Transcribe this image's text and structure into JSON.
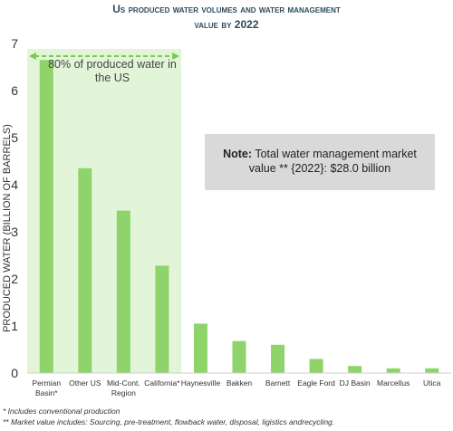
{
  "title_line1": "Us produced water volumes and water management",
  "title_line2": "value by 2022",
  "note_label": "Note:",
  "note_text": "Total water management market value ** {2022}: $28.0 billion",
  "region_annotation": "80% of produced water in the US",
  "footnote1": "* Includes conventional production",
  "footnote2": "** Market value includes: Sourcing, pre-treatment, flowback water, disposal, ligistics andrecycling.",
  "colors": {
    "bar": "#8fd46a",
    "highlight": "#e3f5d9",
    "arrow": "#7cc94f",
    "title": "#2d4b5e",
    "note_bg": "#d9d9d9"
  },
  "chart_data": {
    "type": "bar",
    "title": "Us produced water volumes and water management value by 2022",
    "ylabel": "PRODUCED WATER (BILLION OF BARRELS)",
    "xlabel": "",
    "ylim": [
      0,
      7
    ],
    "yticks": [
      0,
      1,
      2,
      3,
      4,
      5,
      6,
      7
    ],
    "grid": false,
    "categories": [
      [
        "Permian",
        "Basin*"
      ],
      [
        "Other US"
      ],
      [
        "Mid-Cont.",
        "Region"
      ],
      [
        "California*"
      ],
      [
        "Haynesville"
      ],
      [
        "Bakken"
      ],
      [
        "Barnett"
      ],
      [
        "Eagle Ford"
      ],
      [
        "DJ Basin"
      ],
      [
        "Marcellus"
      ],
      [
        "Utica"
      ]
    ],
    "values": [
      6.65,
      4.35,
      3.45,
      2.28,
      1.05,
      0.68,
      0.6,
      0.3,
      0.15,
      0.1,
      0.1
    ],
    "highlighted_categories": 4
  }
}
